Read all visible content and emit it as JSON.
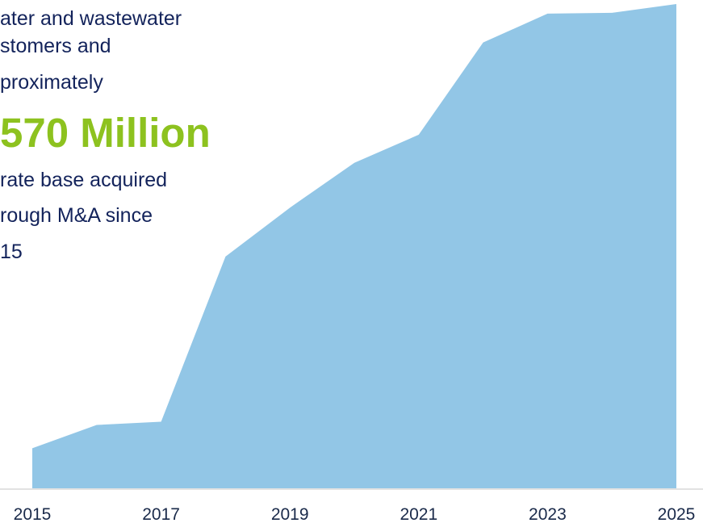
{
  "callout": {
    "intro_lines": [
      "ater and wastewater",
      "stomers and",
      "proximately"
    ],
    "highlight": "570 Million",
    "outro_lines": [
      "rate base acquired",
      "rough M&A since",
      "15"
    ]
  },
  "colors": {
    "area_fill": "#92c6e6",
    "highlight": "#8dc21f",
    "text": "#13235b",
    "axis": "#d9d9d9"
  },
  "chart_data": {
    "type": "area",
    "x": [
      2015,
      2016,
      2017,
      2018,
      2019,
      2020,
      2021,
      2022,
      2023,
      2024,
      2025
    ],
    "values": [
      50,
      79,
      83,
      289,
      350,
      406,
      441,
      556,
      592,
      593,
      604
    ],
    "tick_labels": [
      "2015",
      "2017",
      "2019",
      "2021",
      "2023",
      "2025"
    ],
    "tick_values": [
      2015,
      2017,
      2019,
      2021,
      2023,
      2025
    ],
    "xlim": [
      2015,
      2025
    ],
    "ylim": [
      0,
      604
    ],
    "grid": false,
    "legend": "none"
  }
}
